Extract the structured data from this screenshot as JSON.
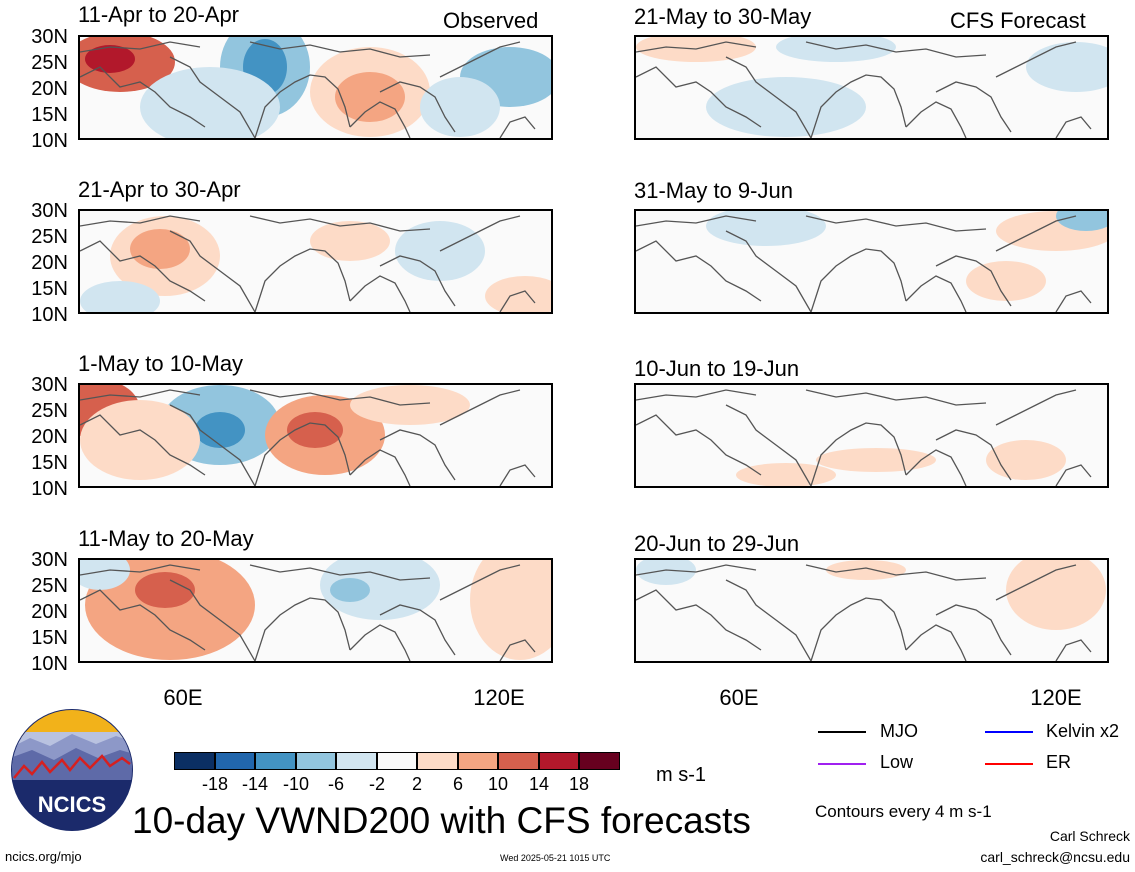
{
  "header": {
    "observed_label": "Observed",
    "forecast_label": "CFS Forecast"
  },
  "observed_panels": [
    {
      "title": "11-Apr to 20-Apr"
    },
    {
      "title": "21-Apr to 30-Apr"
    },
    {
      "title": "1-May to 10-May"
    },
    {
      "title": "11-May to 20-May"
    }
  ],
  "forecast_panels": [
    {
      "title": "21-May to 30-May"
    },
    {
      "title": "31-May to 9-Jun"
    },
    {
      "title": "10-Jun to 19-Jun"
    },
    {
      "title": "20-Jun to 29-Jun"
    }
  ],
  "lat_labels": [
    "30N",
    "25N",
    "20N",
    "15N",
    "10N"
  ],
  "lon_labels": [
    "60E",
    "120E"
  ],
  "colorbar": {
    "ticks": [
      "-18",
      "-14",
      "-10",
      "-6",
      "-2",
      "2",
      "6",
      "10",
      "14",
      "18"
    ],
    "colors": [
      "#0b2f63",
      "#2166ac",
      "#4393c3",
      "#92c5de",
      "#d1e5f0",
      "#fafafa",
      "#fddbc7",
      "#f4a582",
      "#d6604d",
      "#b2182b",
      "#67001f"
    ],
    "units": "m s-1"
  },
  "legend": {
    "items": [
      {
        "label": "MJO",
        "color": "#000000"
      },
      {
        "label": "Kelvin x2",
        "color": "#0000ff"
      },
      {
        "label": "Low",
        "color": "#a020f0"
      },
      {
        "label": "ER",
        "color": "#ff0000"
      }
    ],
    "contour_note": "Contours every 4 m s-1"
  },
  "main_title": "10-day VWND200 with CFS forecasts",
  "logo_text": "NCICS",
  "footer": {
    "url": "ncics.org/mjo",
    "timestamp": "Wed 2025-05-21 1015 UTC",
    "author": "Carl Schreck",
    "email": "carl_schreck@ncsu.edu"
  }
}
